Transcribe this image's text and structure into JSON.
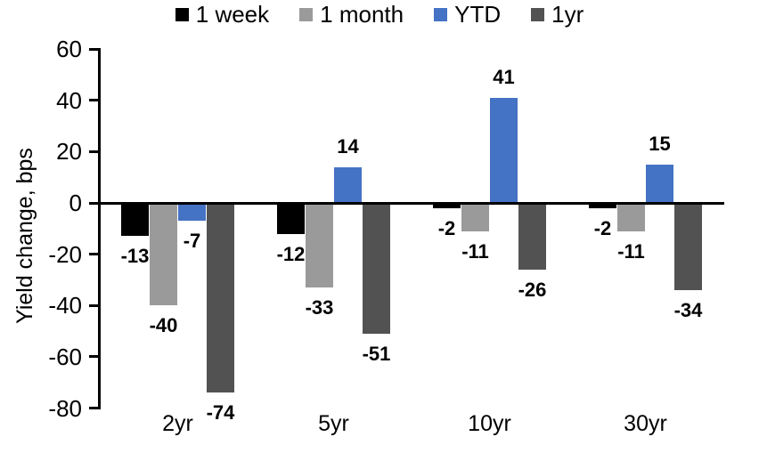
{
  "chart_data": {
    "type": "bar",
    "title": "",
    "ylabel": "Yield change, bps",
    "xlabel": "",
    "categories": [
      "2yr",
      "5yr",
      "10yr",
      "30yr"
    ],
    "series": [
      {
        "name": "1 week",
        "color": "#000000",
        "values": [
          -13,
          -12,
          -2,
          -2
        ]
      },
      {
        "name": "1 month",
        "color": "#9A9A9A",
        "values": [
          -40,
          -33,
          -11,
          -11
        ]
      },
      {
        "name": "YTD",
        "color": "#4472C4",
        "values": [
          -7,
          14,
          41,
          15
        ]
      },
      {
        "name": "1yr",
        "color": "#525252",
        "values": [
          -74,
          -51,
          -26,
          -34
        ]
      }
    ],
    "ylim": [
      -80,
      60
    ],
    "yticks": [
      60,
      40,
      20,
      0,
      -20,
      -40,
      -60,
      -80
    ],
    "grid": false,
    "legend_position": "top",
    "data_labels": true,
    "background_color": "#FFFFFF",
    "axis_color": "#000000"
  }
}
